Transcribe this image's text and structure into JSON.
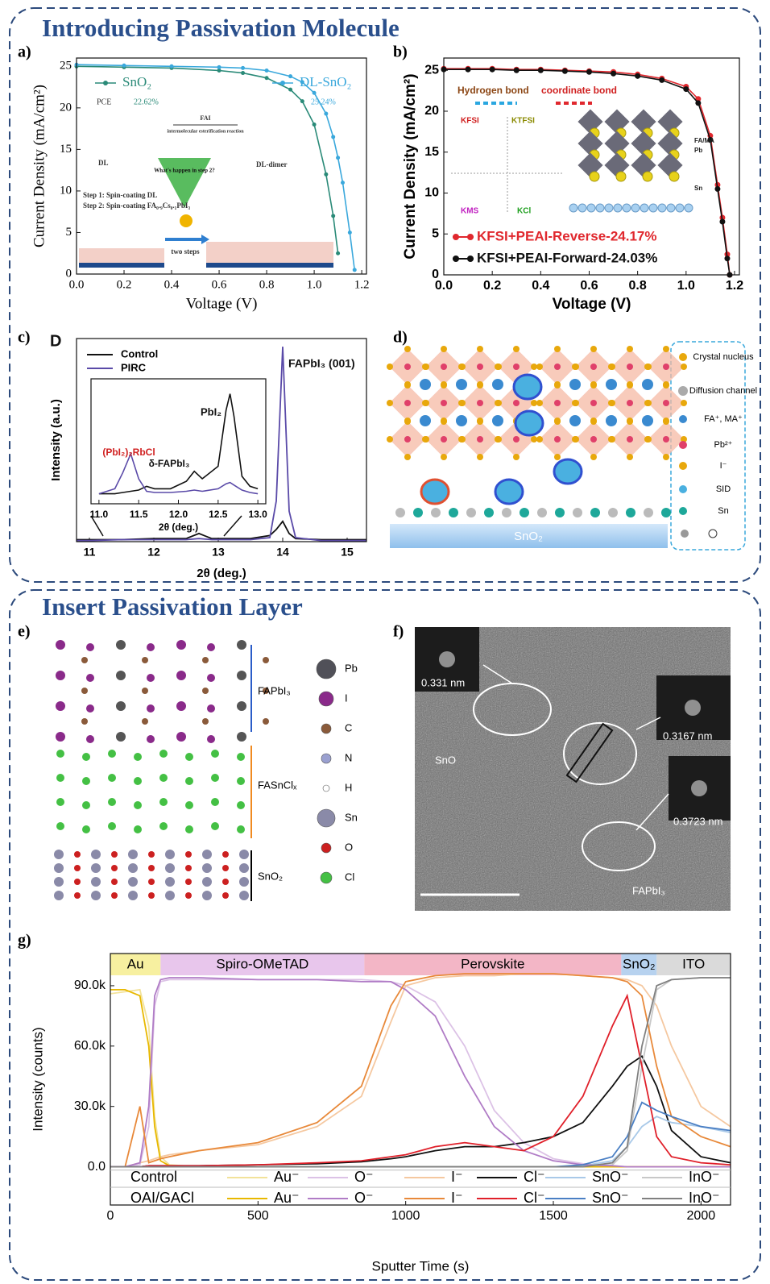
{
  "sections": [
    {
      "title": "Introducing Passivation Molecule"
    },
    {
      "title": "Insert Passivation Layer"
    }
  ],
  "panel_labels": [
    "a)",
    "b)",
    "c)",
    "d)",
    "e)",
    "f)",
    "g)"
  ],
  "chart_data": [
    {
      "type": "line",
      "x_label": "Voltage (V)",
      "y_label": "Current Density (mA/cm²)",
      "x": [
        0,
        0.2,
        0.4,
        0.6,
        0.7,
        0.8,
        0.9,
        0.95,
        1.0,
        1.05,
        1.08,
        1.1,
        1.12,
        1.15,
        1.17
      ],
      "xlim": [
        0,
        1.22
      ],
      "ylim": [
        0,
        26
      ],
      "xticks": [
        {
          "value": 0,
          "label": "0.0"
        },
        {
          "value": 0.2,
          "label": "0.2"
        },
        {
          "value": 0.4,
          "label": "0.4"
        },
        {
          "value": 0.6,
          "label": "0.6"
        },
        {
          "value": 0.8,
          "label": "0.8"
        },
        {
          "value": 1.0,
          "label": "1.0"
        },
        {
          "value": 1.2,
          "label": "1.2"
        }
      ],
      "yticks": [
        0,
        5,
        10,
        15,
        20,
        25
      ],
      "marker": true,
      "pce_label": "PCE",
      "series": [
        {
          "name": "SnO₂",
          "color": "#2a8a78",
          "pce": "22.62%",
          "values": [
            25,
            24.9,
            24.8,
            24.5,
            24.2,
            23.6,
            22.2,
            20.8,
            18,
            12,
            7,
            2.5,
            null,
            null,
            null
          ]
        },
        {
          "name": "DL-SnO₂",
          "color": "#3aa8dc",
          "pce": "25.24%",
          "values": [
            25.2,
            25.1,
            25,
            24.9,
            24.8,
            24.5,
            23.8,
            23.1,
            21.8,
            19.3,
            16.5,
            14,
            11,
            5,
            0.5
          ]
        }
      ],
      "annotations": [
        "FAI",
        "intermolecular esterification reaction",
        "DL",
        "DL-dimer",
        "What's happen in step 2?",
        "Step 1: Spin-coating DL",
        "Step 2: Spin-coating FA₀.₉Cs₀.₁PbI₃",
        "two steps"
      ]
    },
    {
      "type": "line",
      "x_label": "Voltage (V)",
      "y_label": "Current Density (mA/cm²)",
      "x": [
        0,
        0.1,
        0.2,
        0.3,
        0.4,
        0.5,
        0.6,
        0.7,
        0.8,
        0.9,
        1.0,
        1.05,
        1.1,
        1.13,
        1.15,
        1.17,
        1.18
      ],
      "xlim": [
        0,
        1.22
      ],
      "ylim": [
        0,
        26.5
      ],
      "xticks": [
        {
          "value": 0,
          "label": "0.0"
        },
        {
          "value": 0.2,
          "label": "0.2"
        },
        {
          "value": 0.4,
          "label": "0.4"
        },
        {
          "value": 0.6,
          "label": "0.6"
        },
        {
          "value": 0.8,
          "label": "0.8"
        },
        {
          "value": 1.0,
          "label": "1.0"
        },
        {
          "value": 1.2,
          "label": "1.2"
        }
      ],
      "yticks": [
        0,
        5,
        10,
        15,
        20,
        25
      ],
      "marker": true,
      "series": [
        {
          "name": "KFSI+PEAI-Reverse-24.17%",
          "color": "#e0282e",
          "values": [
            25.2,
            25.2,
            25.2,
            25.1,
            25.1,
            25.0,
            24.9,
            24.8,
            24.5,
            24,
            23,
            21.5,
            17,
            11,
            7,
            2.5,
            0
          ]
        },
        {
          "name": "KFSI+PEAI-Forward-24.03%",
          "color": "#111111",
          "values": [
            25.1,
            25.1,
            25.1,
            25.0,
            25.0,
            24.9,
            24.8,
            24.6,
            24.3,
            23.8,
            22.7,
            21,
            16.5,
            10.5,
            6.5,
            2,
            0
          ]
        }
      ],
      "annotations": [
        "Hydrogen bond",
        "coordinate bond",
        "KFSI",
        "KTFSI",
        "KMS",
        "KCl",
        "FA/MA",
        "Pb",
        "Sn"
      ]
    },
    {
      "type": "line",
      "x_label": "2θ (deg.)",
      "y_label": "Intensity (a.u.)",
      "x": [
        10.8,
        11,
        11.5,
        12,
        12.5,
        12.7,
        12.9,
        13.5,
        13.8,
        13.9,
        14.0,
        14.1,
        14.2,
        14.6,
        15.3
      ],
      "xlim": [
        10.8,
        15.3
      ],
      "ylim": [
        0,
        100
      ],
      "xticks": [
        11,
        12,
        13,
        14,
        15
      ],
      "series": [
        {
          "name": "Control",
          "color": "#111111",
          "values": [
            1,
            1,
            1,
            1.5,
            1.5,
            4,
            1.5,
            1.5,
            3,
            6,
            10,
            4,
            1.5,
            1,
            1
          ]
        },
        {
          "name": "PIRC",
          "color": "#5a4aa8",
          "values": [
            0.5,
            0.5,
            1,
            1,
            1,
            1.5,
            1,
            1,
            2,
            20,
            96,
            15,
            2,
            0.5,
            0.5
          ]
        }
      ],
      "annotations": [
        "D",
        "FAPbI₃ (001)"
      ]
    },
    {
      "type": "line",
      "x_label": "2θ (deg.)",
      "x": [
        11,
        11.2,
        11.3,
        11.4,
        11.5,
        11.6,
        11.7,
        11.9,
        12.1,
        12.2,
        12.3,
        12.5,
        12.6,
        12.65,
        12.7,
        12.8,
        12.9,
        13
      ],
      "xlim": [
        10.9,
        13.1
      ],
      "ylim": [
        0,
        100
      ],
      "xticks": [
        {
          "value": 11,
          "label": "11.0"
        },
        {
          "value": 11.5,
          "label": "11.5"
        },
        {
          "value": 12,
          "label": "12.0"
        },
        {
          "value": 12.5,
          "label": "12.5"
        },
        {
          "value": 13,
          "label": "13.0"
        }
      ],
      "series": [
        {
          "name": "Control",
          "color": "#111111",
          "values": [
            8,
            8,
            9,
            10,
            11,
            14,
            12,
            12,
            18,
            26,
            20,
            30,
            75,
            88,
            70,
            22,
            14,
            12
          ]
        },
        {
          "name": "PIRC",
          "color": "#5a4aa8",
          "values": [
            8,
            12,
            25,
            40,
            20,
            10,
            9,
            9,
            10,
            11,
            10,
            12,
            16,
            17,
            15,
            11,
            9,
            8
          ]
        }
      ],
      "annotations": [
        "PbI₂",
        "(PbI₂)₂RbCl",
        "δ-FAPbI₃"
      ]
    },
    {
      "type": "line",
      "x_label": "Sputter Time (s)",
      "y_label": "Intensity (counts)",
      "x": [
        0,
        50,
        100,
        130,
        150,
        170,
        200,
        300,
        500,
        700,
        850,
        950,
        1000,
        1100,
        1200,
        1300,
        1400,
        1500,
        1600,
        1700,
        1750,
        1800,
        1850,
        1900,
        2000,
        2100
      ],
      "xlim": [
        0,
        2100
      ],
      "ylim": [
        -19000,
        106000
      ],
      "xticks": [
        0,
        500,
        1000,
        1500,
        2000
      ],
      "yticks": [
        {
          "value": 0,
          "label": "0.0"
        },
        {
          "value": 30000,
          "label": "30.0k"
        },
        {
          "value": 60000,
          "label": "60.0k"
        },
        {
          "value": 90000,
          "label": "90.0k"
        }
      ],
      "regions": [
        {
          "name": "Au",
          "start": 0,
          "end": 170,
          "color": "#f7f0a0"
        },
        {
          "name": "Spiro-OMeTAD",
          "start": 170,
          "end": 860,
          "color": "#e8c6ec"
        },
        {
          "name": "Perovskite",
          "start": 860,
          "end": 1730,
          "color": "#f3b6c6"
        },
        {
          "name": "SnO₂",
          "start": 1730,
          "end": 1850,
          "color": "#b7d2ef"
        },
        {
          "name": "ITO",
          "start": 1850,
          "end": 2100,
          "color": "#dadada"
        }
      ],
      "groups": [
        "Control",
        "OAI/GACl"
      ],
      "series": [
        {
          "name": "Au⁻",
          "group": 0,
          "color": "#f2e29a",
          "values": [
            86000,
            87000,
            88000,
            70000,
            25000,
            5000,
            1000,
            0,
            0,
            0,
            0,
            0,
            0,
            0,
            0,
            0,
            0,
            0,
            0,
            0,
            0,
            0,
            0,
            0,
            0,
            0
          ]
        },
        {
          "name": "O⁻",
          "group": 0,
          "color": "#dcc2e6",
          "values": [
            0,
            0,
            1000,
            20000,
            80000,
            92000,
            93000,
            93000,
            93000,
            93000,
            93000,
            92000,
            90000,
            82000,
            60000,
            28000,
            12000,
            4000,
            1500,
            500,
            0,
            0,
            0,
            0,
            0,
            0
          ]
        },
        {
          "name": "I⁻",
          "group": 0,
          "color": "#f5c8a0",
          "values": [
            0,
            0,
            2000,
            3000,
            4000,
            5000,
            6000,
            8000,
            11000,
            20000,
            35000,
            72000,
            90000,
            94000,
            95000,
            95000,
            96000,
            96000,
            95000,
            94000,
            93000,
            90000,
            80000,
            60000,
            30000,
            20000
          ]
        },
        {
          "name": "Cl⁻",
          "group": 0,
          "color": "#111111",
          "values": [
            0,
            0,
            0,
            500,
            500,
            500,
            500,
            500,
            1000,
            1500,
            2500,
            4000,
            5000,
            8000,
            10000,
            10000,
            12000,
            15000,
            22000,
            40000,
            50000,
            55000,
            40000,
            18000,
            5000,
            2000
          ]
        },
        {
          "name": "SnO⁻",
          "group": 0,
          "color": "#a9c9e8",
          "values": [
            0,
            0,
            0,
            0,
            0,
            0,
            0,
            0,
            0,
            0,
            0,
            0,
            0,
            0,
            0,
            0,
            0,
            0,
            500,
            3000,
            10000,
            20000,
            25000,
            22000,
            20000,
            17000
          ]
        },
        {
          "name": "InO⁻",
          "group": 0,
          "color": "#c8c8c8",
          "values": [
            0,
            0,
            0,
            0,
            0,
            0,
            0,
            0,
            0,
            0,
            0,
            0,
            0,
            0,
            0,
            0,
            0,
            0,
            0,
            1000,
            8000,
            50000,
            88000,
            93000,
            94000,
            94000
          ]
        },
        {
          "name": "Au⁻",
          "group": 1,
          "color": "#e8b800",
          "values": [
            88000,
            88000,
            85000,
            60000,
            20000,
            3000,
            500,
            0,
            0,
            0,
            0,
            0,
            0,
            0,
            0,
            0,
            0,
            0,
            0,
            0,
            0,
            0,
            0,
            0,
            0,
            0
          ]
        },
        {
          "name": "O⁻",
          "group": 1,
          "color": "#b07cc6",
          "values": [
            0,
            0,
            2000,
            30000,
            85000,
            93000,
            94000,
            94000,
            93000,
            93000,
            92000,
            92000,
            88000,
            75000,
            45000,
            20000,
            8000,
            3000,
            1000,
            500,
            0,
            0,
            0,
            0,
            0,
            0
          ]
        },
        {
          "name": "I⁻",
          "group": 1,
          "color": "#e8893a",
          "values": [
            0,
            0,
            30000,
            2000,
            3000,
            4000,
            5000,
            8000,
            12000,
            22000,
            40000,
            80000,
            92000,
            95000,
            96000,
            96000,
            96000,
            96000,
            95000,
            94000,
            92000,
            85000,
            50000,
            25000,
            15000,
            10000
          ]
        },
        {
          "name": "Cl⁻",
          "group": 1,
          "color": "#e0202a",
          "values": [
            0,
            0,
            0,
            500,
            500,
            500,
            500,
            500,
            1000,
            2000,
            3000,
            5000,
            6000,
            10000,
            12000,
            10000,
            8000,
            15000,
            35000,
            70000,
            85000,
            50000,
            15000,
            5000,
            2000,
            1000
          ]
        },
        {
          "name": "SnO⁻",
          "group": 1,
          "color": "#4a7fc4",
          "values": [
            0,
            0,
            0,
            0,
            0,
            0,
            0,
            0,
            0,
            0,
            0,
            0,
            0,
            0,
            0,
            0,
            0,
            0,
            1000,
            5000,
            15000,
            32000,
            28000,
            25000,
            20000,
            18000
          ]
        },
        {
          "name": "InO⁻",
          "group": 1,
          "color": "#808080",
          "values": [
            0,
            0,
            0,
            0,
            0,
            0,
            0,
            0,
            0,
            0,
            0,
            0,
            0,
            0,
            0,
            0,
            0,
            0,
            0,
            2000,
            10000,
            60000,
            90000,
            93000,
            94000,
            94000
          ]
        }
      ]
    }
  ],
  "diagram_d": {
    "legend": [
      "Crystal nucleus",
      "Diffusion channel",
      "FA⁺, MA⁺",
      "Pb²⁺",
      "I⁻",
      "SID",
      "Sn"
    ],
    "substrate": "SnO₂"
  },
  "diagram_e": {
    "legend": [
      "Pb",
      "I",
      "C",
      "N",
      "H",
      "Sn",
      "O",
      "Cl"
    ],
    "layers": [
      "FAPbI₃",
      "FASnClₓ",
      "SnO₂"
    ]
  },
  "image_f": {
    "labels": [
      "0.331 nm",
      "0.3167 nm",
      "0.3723 nm",
      "SnO",
      "FAPbI₃"
    ]
  }
}
